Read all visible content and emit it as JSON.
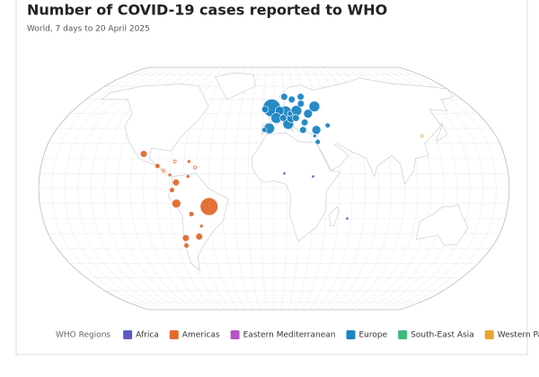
{
  "chart_data": {
    "type": "bubble-map",
    "title": "Number of COVID-19 cases reported to WHO",
    "subtitle": "World, 7 days to 20 April 2025",
    "legend_title": "WHO Regions",
    "regions": [
      {
        "name": "Africa",
        "color": "#5b59c3",
        "bubbles": [
          {
            "lon": 8,
            "lat": 10,
            "value": 80
          },
          {
            "lon": 30,
            "lat": 8,
            "value": 80
          },
          {
            "lon": 57,
            "lat": -20,
            "value": 80
          }
        ]
      },
      {
        "name": "Americas",
        "color": "#e2692e",
        "bubbles": [
          {
            "lon": -50,
            "lat": -12,
            "value": 3000
          },
          {
            "lon": -75,
            "lat": -10,
            "value": 750
          },
          {
            "lon": -75,
            "lat": 4,
            "value": 450
          },
          {
            "lon": -64,
            "lat": -17,
            "value": 250
          },
          {
            "lon": -71,
            "lat": -33,
            "value": 450
          },
          {
            "lon": -60,
            "lat": -32,
            "value": 450
          },
          {
            "lon": -102,
            "lat": 23,
            "value": 450
          },
          {
            "lon": -90,
            "lat": 15,
            "value": 250
          },
          {
            "lon": -80,
            "lat": 9,
            "value": 120
          },
          {
            "lon": -66,
            "lat": 8,
            "value": 120
          },
          {
            "lon": -78,
            "lat": -1,
            "value": 250
          },
          {
            "lon": -66,
            "lat": 18,
            "value": 120
          },
          {
            "lon": -72,
            "lat": -38,
            "value": 250
          },
          {
            "lon": -57,
            "lat": -25,
            "value": 120
          },
          {
            "lon": -85,
            "lat": 12,
            "value": 60
          },
          {
            "lon": -77,
            "lat": 18,
            "value": 60
          },
          {
            "lon": -61,
            "lat": 14,
            "value": 60
          }
        ]
      },
      {
        "name": "Eastern Mediterranean",
        "color": "#b556c6",
        "bubbles": []
      },
      {
        "name": "Europe",
        "color": "#1a85c2",
        "bubbles": [
          {
            "lon": -2,
            "lat": 54,
            "value": 3000
          },
          {
            "lon": 10,
            "lat": 51,
            "value": 1500
          },
          {
            "lon": 20,
            "lat": 52,
            "value": 1100
          },
          {
            "lon": 5,
            "lat": 52,
            "value": 750
          },
          {
            "lon": 2,
            "lat": 47,
            "value": 1100
          },
          {
            "lon": -4,
            "lat": 40,
            "value": 1100
          },
          {
            "lon": 12,
            "lat": 43,
            "value": 1100
          },
          {
            "lon": 15,
            "lat": 47,
            "value": 750
          },
          {
            "lon": 25,
            "lat": 57,
            "value": 450
          },
          {
            "lon": 26,
            "lat": 44,
            "value": 450
          },
          {
            "lon": 19,
            "lat": 47,
            "value": 450
          },
          {
            "lon": 8,
            "lat": 47,
            "value": 450
          },
          {
            "lon": 30,
            "lat": 50,
            "value": 750
          },
          {
            "lon": 37,
            "lat": 55,
            "value": 1100
          },
          {
            "lon": 24,
            "lat": 39,
            "value": 450
          },
          {
            "lon": 35,
            "lat": 39,
            "value": 750
          },
          {
            "lon": 45,
            "lat": 42,
            "value": 250
          },
          {
            "lon": 35,
            "lat": 31,
            "value": 250
          },
          {
            "lon": 17,
            "lat": 60,
            "value": 450
          },
          {
            "lon": 10,
            "lat": 62,
            "value": 450
          },
          {
            "lon": 26,
            "lat": 62,
            "value": 450
          },
          {
            "lon": -8,
            "lat": 53,
            "value": 450
          },
          {
            "lon": 14,
            "lat": 50,
            "value": 250
          },
          {
            "lon": 33,
            "lat": 35,
            "value": 120
          },
          {
            "lon": -8,
            "lat": 39,
            "value": 250
          }
        ]
      },
      {
        "name": "South-East Asia",
        "color": "#3fb87a",
        "bubbles": []
      },
      {
        "name": "Western Pacific",
        "color": "#e8a530",
        "bubbles": [
          {
            "lon": 120,
            "lat": 35,
            "value": 60
          }
        ]
      }
    ]
  }
}
